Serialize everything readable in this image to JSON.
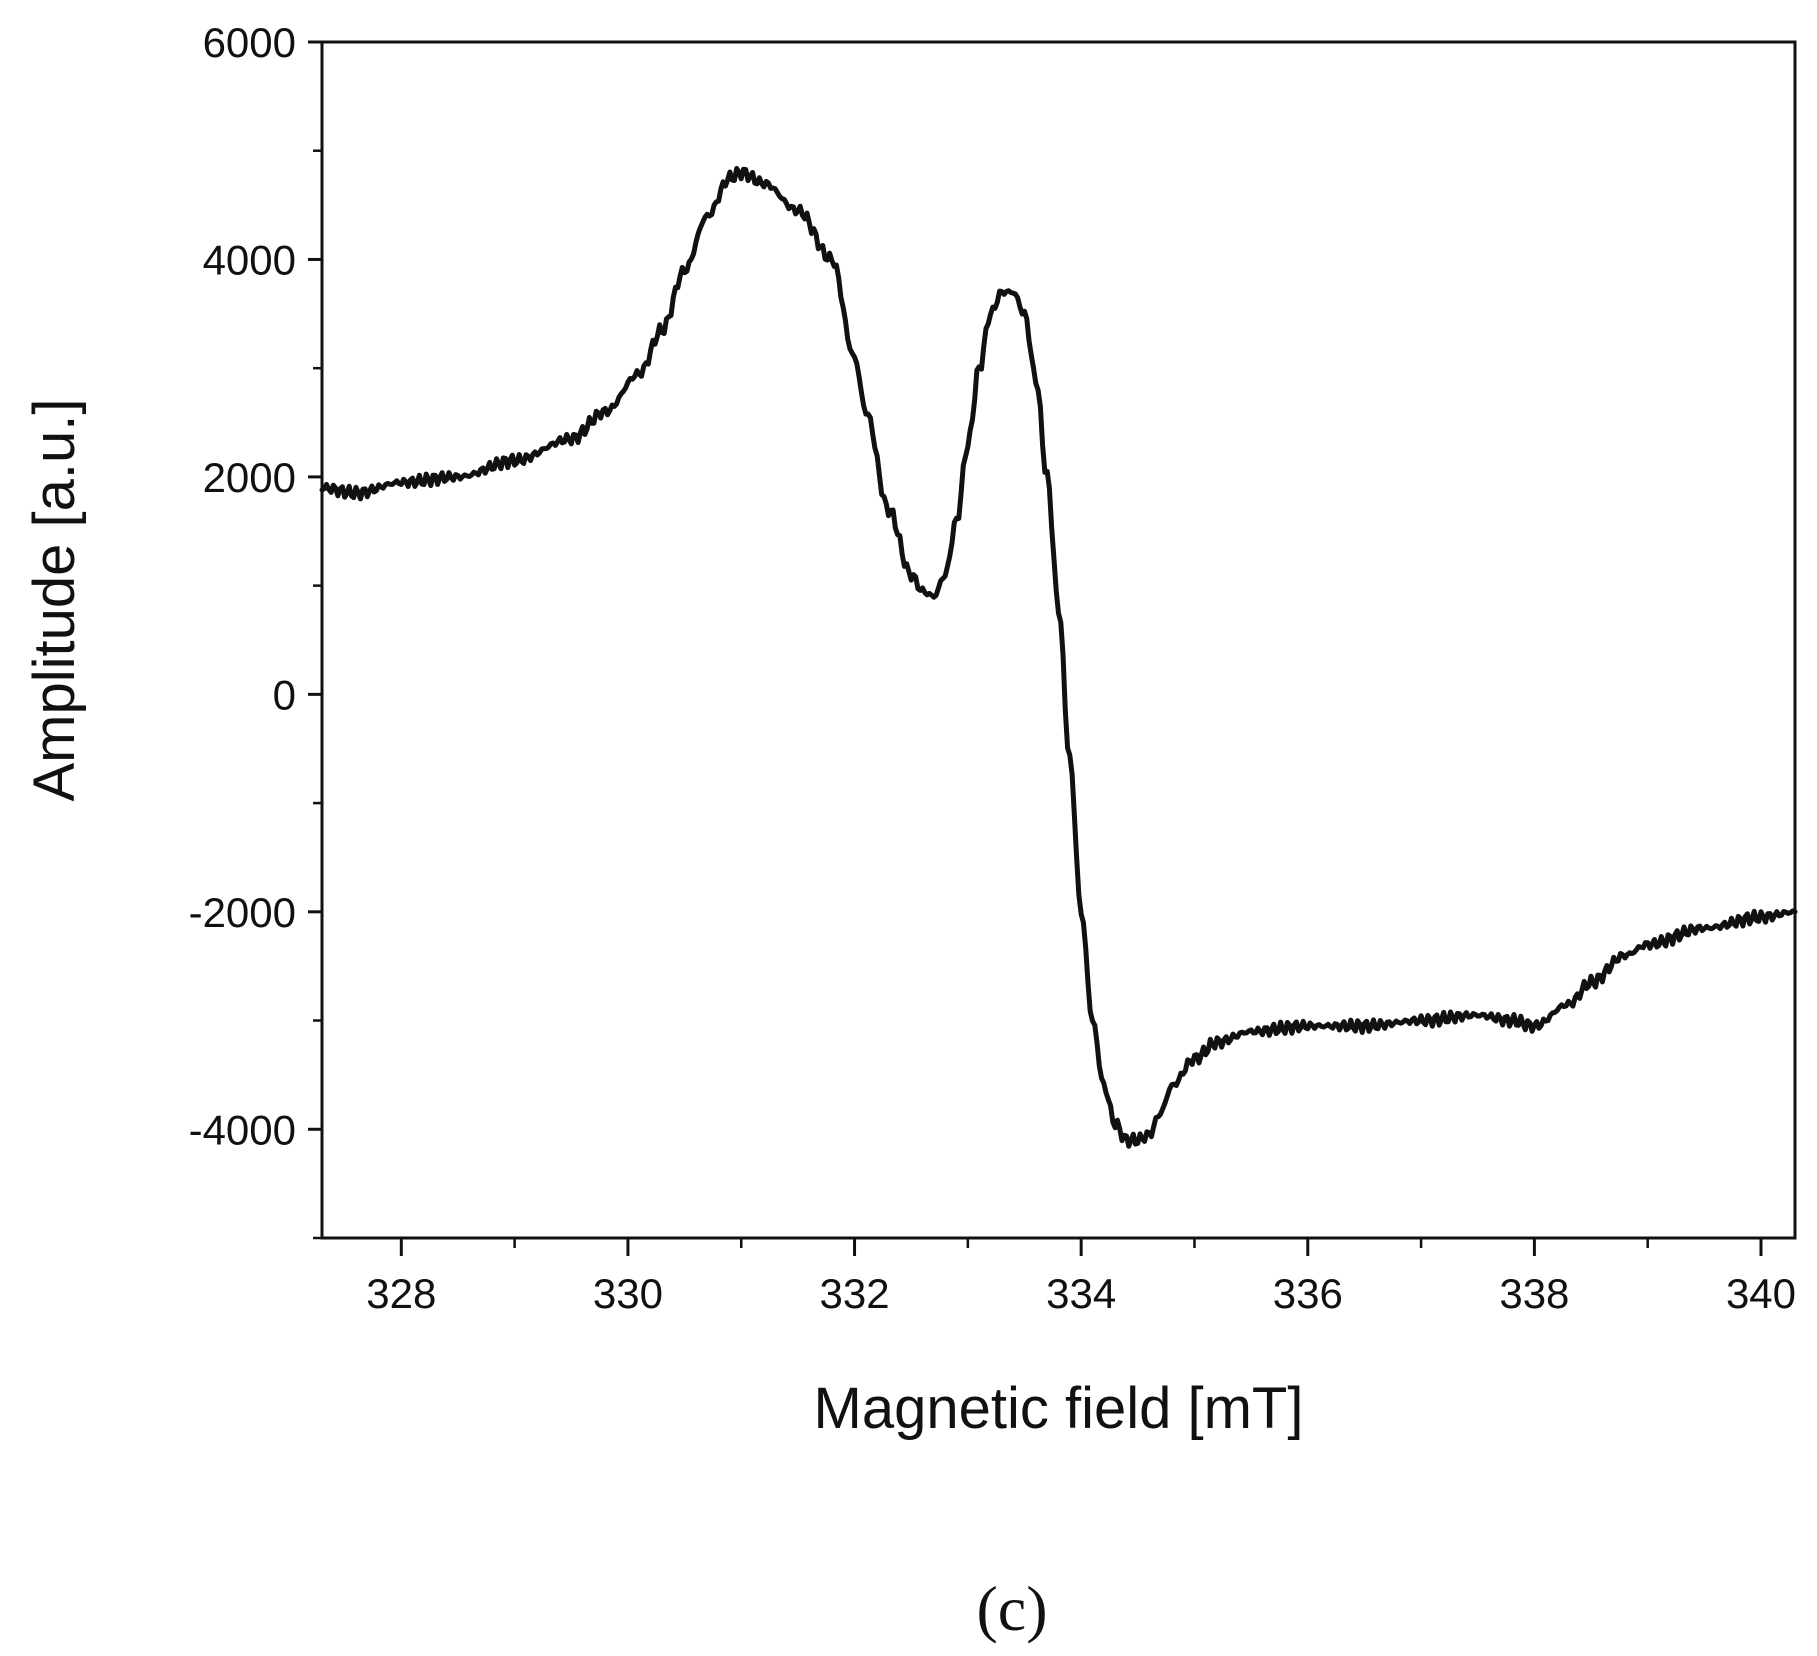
{
  "panel_label": "(c)",
  "colors": {
    "line": "#111111",
    "axis": "#111111",
    "background": "#ffffff"
  },
  "chart_data": {
    "type": "line",
    "title": "",
    "xlabel": "Magnetic field [mT]",
    "ylabel": "Amplitude [a.u.]",
    "xlim": [
      327.3,
      340.3
    ],
    "ylim": [
      -5000,
      6000
    ],
    "x_ticks": [
      328,
      330,
      332,
      334,
      336,
      338,
      340
    ],
    "x_tick_labels": [
      "328",
      "330",
      "332",
      "334",
      "336",
      "338",
      "340"
    ],
    "x_minor_ticks": [
      329,
      331,
      333,
      335,
      337,
      339
    ],
    "y_ticks": [
      6000,
      4000,
      2000,
      0,
      -2000,
      -4000
    ],
    "y_tick_labels": [
      "6000",
      "4000",
      "2000",
      "0",
      "-2000",
      "-4000"
    ],
    "y_minor_ticks": [
      5000,
      3000,
      1000,
      -1000,
      -3000,
      -5000
    ],
    "grid": false,
    "legend": "none",
    "series": [
      {
        "x": [
          327.3,
          327.6,
          328.0,
          328.5,
          329.0,
          329.5,
          329.8,
          330.1,
          330.3,
          330.5,
          330.7,
          330.9,
          331.0,
          331.2,
          331.5,
          331.8,
          332.0,
          332.1,
          332.3,
          332.5,
          332.6,
          332.7,
          332.8,
          332.9,
          333.0,
          333.1,
          333.2,
          333.3,
          333.4,
          333.5,
          333.6,
          333.7,
          333.8,
          333.9,
          334.0,
          334.1,
          334.2,
          334.3,
          334.4,
          334.5,
          334.6,
          334.7,
          334.8,
          335.0,
          335.2,
          335.5,
          336.0,
          336.5,
          337.0,
          337.5,
          337.8,
          338.0,
          338.3,
          338.5,
          338.8,
          339.0,
          339.5,
          340.0,
          340.3
        ],
        "y": [
          1900,
          1850,
          1950,
          2000,
          2150,
          2350,
          2600,
          2950,
          3350,
          3900,
          4400,
          4750,
          4800,
          4700,
          4450,
          4000,
          3100,
          2600,
          1700,
          1100,
          950,
          900,
          1100,
          1600,
          2300,
          3000,
          3500,
          3700,
          3700,
          3500,
          2900,
          2000,
          800,
          -600,
          -2000,
          -3000,
          -3600,
          -3950,
          -4100,
          -4100,
          -4050,
          -3850,
          -3600,
          -3350,
          -3200,
          -3100,
          -3050,
          -3050,
          -3000,
          -2950,
          -3000,
          -3050,
          -2850,
          -2650,
          -2400,
          -2300,
          -2150,
          -2050,
          -2000
        ]
      }
    ]
  }
}
